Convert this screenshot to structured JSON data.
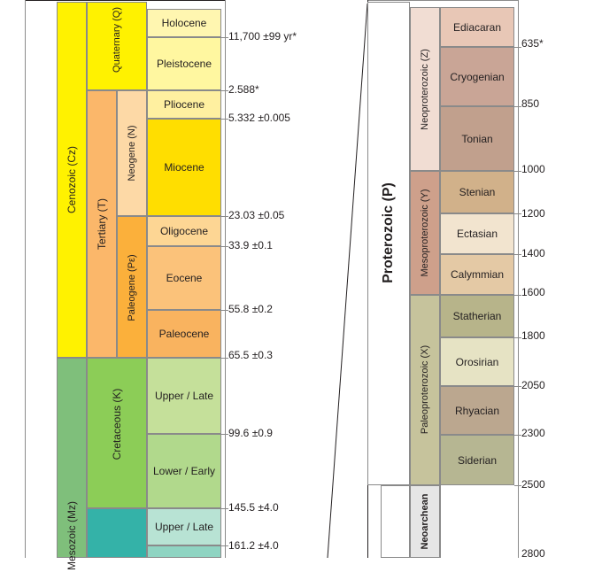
{
  "colors": {
    "cenozoic": "#fff200",
    "quaternary": "#fff200",
    "holocene": "#fff6b0",
    "pleistocene": "#fff7a0",
    "tertiary": "#fbb76a",
    "neogene": "#ffe400",
    "pliocene": "#fff0a0",
    "miocene": "#ffde00",
    "paleogene": "#fbb03b",
    "oligocene": "#fdd694",
    "eocene": "#fbc27a",
    "paleocene": "#f9b35f",
    "mesozoic": "#7fbf7b",
    "cretaceous": "#8ccd57",
    "upper_late": "#c5e09a",
    "lower_early": "#b1d98c",
    "jurassic": "#34b2a8",
    "upper_late_j": "#b8e3d4",
    "proterozoic": "#ffffff",
    "neoproterozoic": "#f1ddd3",
    "mesoproterozoic": "#cea08b",
    "paleoproterozoic": "#c6c39c",
    "neoarchean": "#e6e6e6"
  },
  "left": {
    "era": "Cenozoic (Cz)",
    "era2": "Mesozoic (Mz)",
    "quaternary": "Quaternary (Q)",
    "tertiary": "Tertiary (T)",
    "neogene": "Neogene (N)",
    "paleogene": "Paleogene (Pε)",
    "cretaceous": "Cretaceous (K)",
    "epochs": {
      "holocene": "Holocene",
      "pleistocene": "Pleistocene",
      "pliocene": "Pliocene",
      "miocene": "Miocene",
      "oligocene": "Oligocene",
      "eocene": "Eocene",
      "paleocene": "Paleocene",
      "upper_late": "Upper / Late",
      "lower_early": "Lower / Early",
      "upper_late_j": "Upper / Late"
    },
    "ages": {
      "a1": "11,700 ±99 yr*",
      "a2": "2.588*",
      "a3": "5.332 ±0.005",
      "a4": "23.03 ±0.05",
      "a5": "33.9 ±0.1",
      "a6": "55.8 ±0.2",
      "a7": "65.5 ±0.3",
      "a8": "99.6 ±0.9",
      "a9": "145.5 ±4.0",
      "a10": "161.2 ±4.0"
    }
  },
  "right": {
    "eon": "Proterozoic (P)",
    "neo": "Neoproterozoic (Z)",
    "meso": "Mesoproterozoic (Y)",
    "paleo": "Paleoproterozoic (X)",
    "neoarchean": "Neoarchean",
    "periods": {
      "ediacaran": "Ediacaran",
      "cryogenian": "Cryogenian",
      "tonian": "Tonian",
      "stenian": "Stenian",
      "ectasian": "Ectasian",
      "calymmian": "Calymmian",
      "statherian": "Statherian",
      "orosirian": "Orosirian",
      "rhyacian": "Rhyacian",
      "siderian": "Siderian"
    },
    "ages": {
      "r1": "635*",
      "r2": "850",
      "r3": "1000",
      "r4": "1200",
      "r5": "1400",
      "r6": "1600",
      "r7": "1800",
      "r8": "2050",
      "r9": "2300",
      "r10": "2500",
      "r11": "2800"
    }
  }
}
